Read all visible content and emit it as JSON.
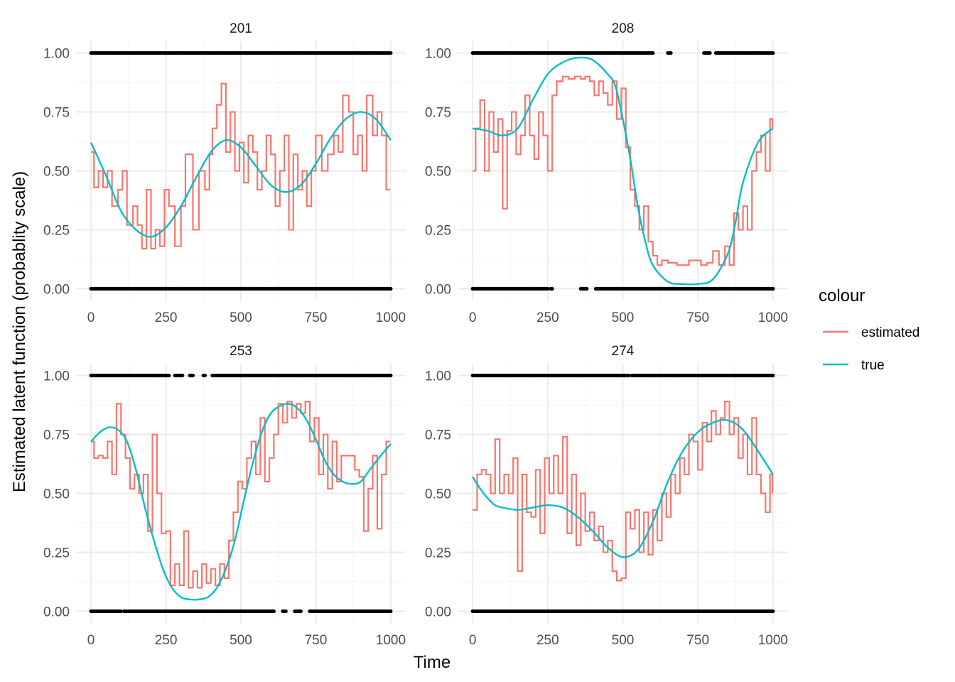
{
  "colors": {
    "estimated": "#F8766D",
    "true": "#00BFC4",
    "points": "#000000",
    "grid_major": "#ebebeb",
    "grid_minor": "#f4f4f4"
  },
  "chart_data": {
    "type": "line",
    "facet_layout": "2x2",
    "xlabel": "Time",
    "ylabel": "Estimated latent function (probablity scale)",
    "xlim": [
      -50,
      1050
    ],
    "ylim": [
      -0.05,
      1.05
    ],
    "x_ticks": [
      "0",
      "250",
      "500",
      "750",
      "1000"
    ],
    "x_tick_values": [
      0,
      250,
      500,
      750,
      1000
    ],
    "y_ticks": [
      "0.00",
      "0.25",
      "0.50",
      "0.75",
      "1.00"
    ],
    "y_tick_values": [
      0,
      0.25,
      0.5,
      0.75,
      1
    ],
    "grid": true,
    "legend": {
      "title": "colour",
      "placement": "right",
      "entries": [
        {
          "key": "estimated",
          "label": "estimated"
        },
        {
          "key": "true",
          "label": "true"
        }
      ]
    },
    "panels": [
      {
        "label": "201",
        "series": [
          {
            "name": "true",
            "x": [
              0,
              50,
              100,
              150,
              200,
              250,
              300,
              350,
              400,
              450,
              500,
              550,
              600,
              650,
              700,
              750,
              800,
              850,
              900,
              950,
              1000
            ],
            "y": [
              0.62,
              0.48,
              0.33,
              0.25,
              0.22,
              0.26,
              0.35,
              0.47,
              0.58,
              0.63,
              0.6,
              0.52,
              0.44,
              0.41,
              0.44,
              0.53,
              0.64,
              0.72,
              0.75,
              0.72,
              0.63
            ]
          },
          {
            "name": "estimated",
            "x": [
              0,
              10,
              25,
              40,
              55,
              70,
              90,
              105,
              120,
              140,
              155,
              170,
              185,
              200,
              215,
              230,
              245,
              260,
              280,
              300,
              315,
              340,
              360,
              380,
              395,
              405,
              420,
              435,
              450,
              465,
              480,
              495,
              510,
              525,
              540,
              555,
              570,
              585,
              600,
              615,
              630,
              645,
              660,
              675,
              690,
              705,
              720,
              735,
              750,
              770,
              790,
              810,
              825,
              840,
              860,
              875,
              890,
              905,
              920,
              940,
              955,
              970,
              985,
              998
            ],
            "y": [
              0.58,
              0.43,
              0.5,
              0.43,
              0.5,
              0.35,
              0.42,
              0.5,
              0.27,
              0.35,
              0.27,
              0.17,
              0.42,
              0.17,
              0.25,
              0.18,
              0.42,
              0.35,
              0.18,
              0.35,
              0.57,
              0.25,
              0.5,
              0.42,
              0.57,
              0.68,
              0.78,
              0.87,
              0.58,
              0.75,
              0.5,
              0.62,
              0.45,
              0.65,
              0.58,
              0.42,
              0.5,
              0.65,
              0.57,
              0.35,
              0.5,
              0.65,
              0.25,
              0.57,
              0.42,
              0.5,
              0.35,
              0.5,
              0.65,
              0.5,
              0.57,
              0.65,
              0.58,
              0.82,
              0.75,
              0.57,
              0.65,
              0.5,
              0.82,
              0.65,
              0.75,
              0.65,
              0.42,
              0.42
            ]
          },
          {
            "name": "points_high",
            "y": 1,
            "x_ranges": [
              [
                0,
                1000
              ]
            ]
          },
          {
            "name": "points_low",
            "y": 0,
            "x_ranges": [
              [
                0,
                1000
              ]
            ]
          }
        ]
      },
      {
        "label": "208",
        "series": [
          {
            "name": "true",
            "x": [
              0,
              50,
              100,
              150,
              200,
              250,
              300,
              350,
              400,
              450,
              475,
              500,
              525,
              550,
              575,
              600,
              650,
              700,
              750,
              800,
              850,
              875,
              900,
              950,
              1000
            ],
            "y": [
              0.68,
              0.67,
              0.65,
              0.68,
              0.8,
              0.91,
              0.96,
              0.98,
              0.97,
              0.91,
              0.86,
              0.72,
              0.55,
              0.35,
              0.2,
              0.1,
              0.03,
              0.02,
              0.02,
              0.04,
              0.15,
              0.28,
              0.45,
              0.62,
              0.68
            ]
          },
          {
            "name": "estimated",
            "x": [
              0,
              10,
              25,
              40,
              55,
              70,
              85,
              100,
              115,
              130,
              145,
              160,
              175,
              190,
              205,
              220,
              235,
              250,
              265,
              280,
              300,
              320,
              340,
              360,
              375,
              390,
              405,
              420,
              435,
              450,
              465,
              480,
              495,
              510,
              525,
              540,
              555,
              570,
              585,
              600,
              615,
              630,
              650,
              680,
              720,
              760,
              780,
              800,
              820,
              840,
              855,
              870,
              885,
              900,
              915,
              930,
              945,
              960,
              975,
              990,
              998
            ],
            "y": [
              0.5,
              0.68,
              0.8,
              0.5,
              0.75,
              0.58,
              0.72,
              0.34,
              0.67,
              0.75,
              0.57,
              0.65,
              0.82,
              0.65,
              0.55,
              0.75,
              0.65,
              0.5,
              0.82,
              0.88,
              0.9,
              0.89,
              0.9,
              0.89,
              0.9,
              0.88,
              0.82,
              0.88,
              0.83,
              0.78,
              0.88,
              0.72,
              0.85,
              0.6,
              0.42,
              0.35,
              0.25,
              0.35,
              0.2,
              0.14,
              0.1,
              0.12,
              0.11,
              0.1,
              0.12,
              0.1,
              0.11,
              0.16,
              0.1,
              0.18,
              0.1,
              0.32,
              0.25,
              0.35,
              0.25,
              0.5,
              0.58,
              0.65,
              0.5,
              0.72,
              0.68
            ]
          },
          {
            "name": "points_high",
            "y": 1,
            "x_ranges": [
              [
                0,
                600
              ],
              [
                650,
                660
              ],
              [
                770,
                790
              ],
              [
                810,
                1000
              ]
            ]
          },
          {
            "name": "points_low",
            "y": 0,
            "x_ranges": [
              [
                0,
                250
              ],
              [
                260,
                265
              ],
              [
                360,
                380
              ],
              [
                410,
                1000
              ]
            ]
          }
        ]
      },
      {
        "label": "253",
        "series": [
          {
            "name": "true",
            "x": [
              0,
              30,
              60,
              90,
              120,
              150,
              180,
              210,
              240,
              270,
              300,
              330,
              360,
              390,
              420,
              450,
              480,
              510,
              540,
              570,
              600,
              630,
              660,
              690,
              720,
              750,
              780,
              810,
              840,
              870,
              900,
              930,
              960,
              1000
            ],
            "y": [
              0.72,
              0.76,
              0.78,
              0.77,
              0.72,
              0.6,
              0.44,
              0.3,
              0.18,
              0.1,
              0.06,
              0.05,
              0.05,
              0.06,
              0.1,
              0.18,
              0.3,
              0.47,
              0.63,
              0.76,
              0.84,
              0.87,
              0.88,
              0.86,
              0.81,
              0.73,
              0.64,
              0.58,
              0.55,
              0.54,
              0.55,
              0.6,
              0.65,
              0.71
            ]
          },
          {
            "name": "estimated",
            "x": [
              0,
              10,
              25,
              40,
              55,
              70,
              85,
              100,
              115,
              130,
              145,
              160,
              175,
              190,
              205,
              220,
              235,
              250,
              265,
              280,
              295,
              310,
              325,
              340,
              355,
              370,
              385,
              400,
              415,
              430,
              445,
              460,
              475,
              490,
              505,
              520,
              535,
              550,
              565,
              580,
              595,
              610,
              625,
              640,
              655,
              670,
              685,
              700,
              715,
              730,
              745,
              760,
              775,
              790,
              805,
              820,
              835,
              850,
              865,
              880,
              895,
              910,
              925,
              940,
              955,
              970,
              985,
              998
            ],
            "y": [
              0.72,
              0.65,
              0.66,
              0.65,
              0.72,
              0.58,
              0.88,
              0.75,
              0.65,
              0.52,
              0.58,
              0.5,
              0.58,
              0.34,
              0.75,
              0.5,
              0.33,
              0.34,
              0.11,
              0.2,
              0.11,
              0.34,
              0.1,
              0.17,
              0.1,
              0.2,
              0.12,
              0.18,
              0.11,
              0.2,
              0.14,
              0.3,
              0.42,
              0.55,
              0.52,
              0.65,
              0.72,
              0.58,
              0.82,
              0.55,
              0.65,
              0.75,
              0.88,
              0.8,
              0.89,
              0.82,
              0.88,
              0.84,
              0.89,
              0.72,
              0.82,
              0.58,
              0.75,
              0.52,
              0.72,
              0.55,
              0.66,
              0.66,
              0.66,
              0.6,
              0.57,
              0.34,
              0.52,
              0.66,
              0.35,
              0.58,
              0.72,
              0.72
            ]
          },
          {
            "name": "points_high",
            "y": 1,
            "x_ranges": [
              [
                0,
                260
              ],
              [
                280,
                305
              ],
              [
                330,
                340
              ],
              [
                375,
                380
              ],
              [
                405,
                1000
              ]
            ]
          },
          {
            "name": "points_low",
            "y": 0,
            "x_ranges": [
              [
                0,
                100
              ],
              [
                110,
                610
              ],
              [
                640,
                650
              ],
              [
                680,
                700
              ],
              [
                730,
                1000
              ]
            ]
          }
        ]
      },
      {
        "label": "274",
        "series": [
          {
            "name": "true",
            "x": [
              0,
              25,
              50,
              75,
              100,
              150,
              200,
              250,
              300,
              350,
              400,
              450,
              500,
              550,
              600,
              650,
              700,
              750,
              800,
              850,
              900,
              950,
              1000
            ],
            "y": [
              0.57,
              0.52,
              0.48,
              0.45,
              0.44,
              0.43,
              0.44,
              0.45,
              0.44,
              0.4,
              0.34,
              0.27,
              0.23,
              0.26,
              0.38,
              0.55,
              0.68,
              0.76,
              0.8,
              0.81,
              0.77,
              0.68,
              0.58
            ]
          },
          {
            "name": "estimated",
            "x": [
              0,
              15,
              30,
              45,
              60,
              75,
              90,
              105,
              120,
              135,
              150,
              165,
              180,
              195,
              210,
              225,
              240,
              255,
              270,
              285,
              300,
              315,
              330,
              345,
              360,
              375,
              390,
              405,
              420,
              435,
              450,
              465,
              480,
              495,
              510,
              525,
              540,
              555,
              570,
              585,
              600,
              615,
              630,
              645,
              660,
              675,
              690,
              705,
              720,
              735,
              750,
              765,
              780,
              795,
              810,
              825,
              840,
              855,
              870,
              885,
              900,
              915,
              930,
              945,
              960,
              975,
              990,
              998
            ],
            "y": [
              0.43,
              0.58,
              0.6,
              0.58,
              0.5,
              0.73,
              0.5,
              0.58,
              0.5,
              0.65,
              0.17,
              0.58,
              0.42,
              0.4,
              0.6,
              0.33,
              0.65,
              0.5,
              0.66,
              0.5,
              0.74,
              0.33,
              0.58,
              0.28,
              0.5,
              0.34,
              0.42,
              0.3,
              0.36,
              0.25,
              0.3,
              0.17,
              0.13,
              0.14,
              0.42,
              0.35,
              0.43,
              0.25,
              0.42,
              0.24,
              0.43,
              0.3,
              0.5,
              0.4,
              0.58,
              0.5,
              0.65,
              0.58,
              0.75,
              0.72,
              0.6,
              0.8,
              0.72,
              0.85,
              0.75,
              0.82,
              0.89,
              0.75,
              0.82,
              0.65,
              0.75,
              0.58,
              0.82,
              0.58,
              0.5,
              0.42,
              0.58,
              0.5
            ]
          },
          {
            "name": "points_high",
            "y": 1,
            "x_ranges": [
              [
                0,
                520
              ],
              [
                530,
                1000
              ]
            ]
          },
          {
            "name": "points_low",
            "y": 0,
            "x_ranges": [
              [
                0,
                1000
              ]
            ]
          }
        ]
      }
    ]
  }
}
